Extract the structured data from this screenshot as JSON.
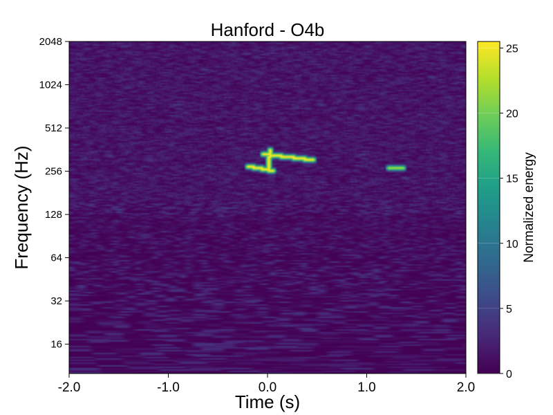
{
  "chart_data": {
    "type": "heatmap",
    "title": "Hanford - O4b",
    "xlabel": "Time (s)",
    "ylabel": "Frequency (Hz)",
    "xlim": [
      -2.0,
      2.0
    ],
    "ylim": [
      10,
      2048
    ],
    "y_scale": "log2",
    "x_ticks": [
      -2.0,
      -1.0,
      0.0,
      1.0,
      2.0
    ],
    "x_tick_labels": [
      "-2.0",
      "-1.0",
      "0.0",
      "1.0",
      "2.0"
    ],
    "y_ticks": [
      16,
      32,
      64,
      128,
      256,
      512,
      1024,
      2048
    ],
    "y_tick_labels": [
      "16",
      "32",
      "64",
      "128",
      "256",
      "512",
      "1024",
      "2048"
    ],
    "colormap": "viridis",
    "colorbar": {
      "label": "Normalized energy",
      "range": [
        0,
        25.5
      ],
      "ticks": [
        0,
        5,
        10,
        15,
        20,
        25
      ],
      "tick_labels": [
        "0",
        "5",
        "10",
        "15",
        "20",
        "25"
      ]
    },
    "features": [
      {
        "t_start": -0.05,
        "t_end": 0.45,
        "f_start": 340,
        "f_end": 310,
        "energy": 25.5
      },
      {
        "t_start": -0.2,
        "t_end": 0.05,
        "f_start": 280,
        "f_end": 260,
        "energy": 25.5
      },
      {
        "t_start": 0.0,
        "t_end": 0.02,
        "f_start": 260,
        "f_end": 360,
        "energy": 25.5
      },
      {
        "t_start": 1.22,
        "t_end": 1.36,
        "f_start": 270,
        "f_end": 275,
        "energy": 22
      }
    ]
  }
}
